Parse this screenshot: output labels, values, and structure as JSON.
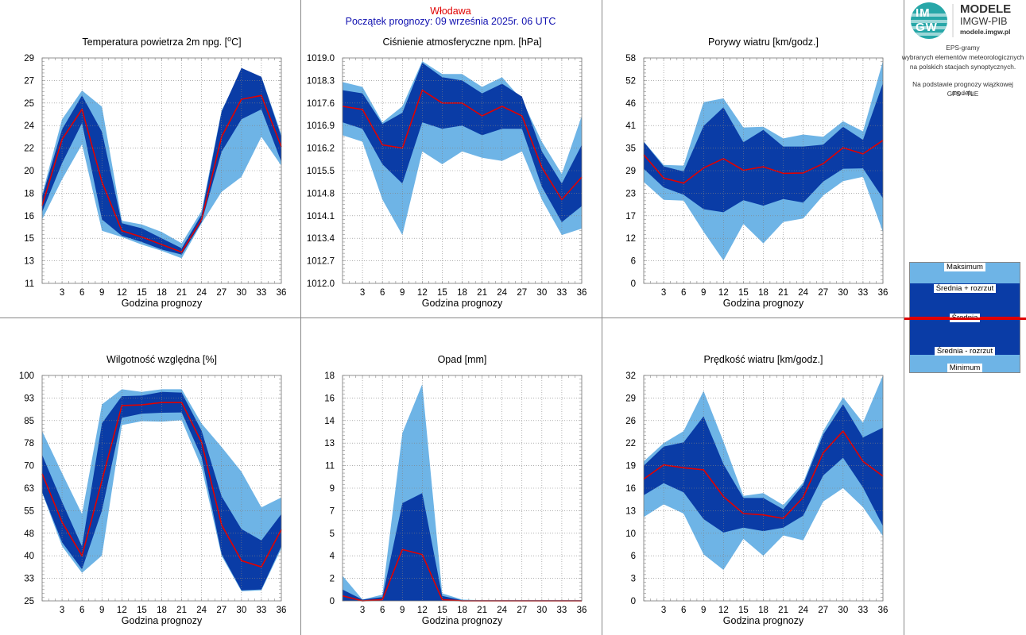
{
  "header": {
    "station": "Włodawa",
    "start": "Początek prognozy: 09 września 2025r. 06 UTC"
  },
  "logo": {
    "mark_top": "IM",
    "mark_bottom": "GW",
    "line1": "MODELE",
    "line2": "IMGW-PIB",
    "line3": "modele.imgw.pl"
  },
  "description": {
    "line1": "EPS-gramy",
    "line2": "wybranych elementów meteorologicznych",
    "line3": "na polskich stacjach  synoptycznych.",
    "line4": "Na podstawie prognozy wiązkowej modelu",
    "line5": "GFS - TLE"
  },
  "legend": {
    "max": "Maksimum",
    "mean_plus": "Średnia + rozrzut",
    "mean": "Średnia",
    "mean_minus": "Średnia - rozrzut",
    "min": "Minimum"
  },
  "colors": {
    "minmax_band": "#6eb4e6",
    "spread_band": "#0a3ca6",
    "mean_line": "#e00000",
    "grid": "#808080"
  },
  "chart_data": [
    {
      "type": "area",
      "title": "Temperatura powietrza 2m npg. [oC]",
      "xlabel": "Godzina prognozy",
      "x": [
        0,
        3,
        6,
        9,
        12,
        15,
        18,
        21,
        24,
        27,
        30,
        33,
        36
      ],
      "xticks": [
        "3",
        "6",
        "9",
        "12",
        "15",
        "18",
        "21",
        "24",
        "27",
        "30",
        "33",
        "36"
      ],
      "yticks": [
        "11",
        "13",
        "15",
        "16",
        "18",
        "20",
        "22",
        "24",
        "25",
        "27",
        "29"
      ],
      "ylim": [
        11,
        29
      ],
      "series": [
        {
          "name": "Maksimum",
          "values": [
            18.1,
            24.1,
            26.4,
            25.1,
            16.0,
            15.7,
            15.1,
            14.2,
            16.8,
            24.8,
            28.0,
            27.5,
            22.9
          ]
        },
        {
          "name": "Średnia + rozrzut",
          "values": [
            17.9,
            23.3,
            26.0,
            23.1,
            15.8,
            15.4,
            14.6,
            13.8,
            16.5,
            24.7,
            28.2,
            27.5,
            22.7
          ]
        },
        {
          "name": "Średnia",
          "values": [
            17.2,
            22.5,
            24.9,
            19.1,
            15.2,
            14.7,
            14.1,
            13.5,
            16.1,
            22.7,
            25.7,
            26.0,
            21.9
          ]
        },
        {
          "name": "Średnia - rozrzut",
          "values": [
            16.7,
            20.6,
            23.8,
            16.1,
            14.8,
            14.3,
            13.7,
            13.3,
            15.9,
            21.5,
            24.1,
            24.9,
            20.7
          ]
        },
        {
          "name": "Minimum",
          "values": [
            16.1,
            19.3,
            22.1,
            15.2,
            14.7,
            14.1,
            13.6,
            13.0,
            15.8,
            18.3,
            19.5,
            22.7,
            20.4
          ]
        }
      ]
    },
    {
      "type": "area",
      "title": "Ciśnienie atmosferyczne npm. [hPa]",
      "xlabel": "Godzina prognozy",
      "x": [
        0,
        3,
        6,
        9,
        12,
        15,
        18,
        21,
        24,
        27,
        30,
        33,
        36
      ],
      "xticks": [
        "3",
        "6",
        "9",
        "12",
        "15",
        "18",
        "21",
        "24",
        "27",
        "30",
        "33",
        "36"
      ],
      "yticks": [
        "1012.0",
        "1012.7",
        "1013.4",
        "1014.1",
        "1014.8",
        "1015.5",
        "1016.2",
        "1016.9",
        "1017.6",
        "1018.3",
        "1019.0"
      ],
      "ylim": [
        1012.0,
        1019.0
      ],
      "series": [
        {
          "name": "Maksimum",
          "values": [
            1018.25,
            1018.1,
            1017.0,
            1017.5,
            1018.9,
            1018.5,
            1018.5,
            1018.1,
            1018.4,
            1017.7,
            1016.4,
            1015.4,
            1017.2
          ]
        },
        {
          "name": "Średnia + rozrzut",
          "values": [
            1018.0,
            1017.9,
            1016.95,
            1017.3,
            1018.85,
            1018.4,
            1018.3,
            1017.9,
            1018.2,
            1017.8,
            1016.1,
            1015.1,
            1016.3
          ]
        },
        {
          "name": "Średnia",
          "values": [
            1017.5,
            1017.4,
            1016.3,
            1016.2,
            1018.0,
            1017.6,
            1017.6,
            1017.2,
            1017.5,
            1017.2,
            1015.6,
            1014.6,
            1015.3
          ]
        },
        {
          "name": "Średnia - rozrzut",
          "values": [
            1017.0,
            1016.8,
            1015.7,
            1015.1,
            1017.0,
            1016.8,
            1016.9,
            1016.6,
            1016.8,
            1016.8,
            1015.0,
            1013.9,
            1014.4
          ]
        },
        {
          "name": "Minimum",
          "values": [
            1016.6,
            1016.4,
            1014.6,
            1013.5,
            1016.1,
            1015.7,
            1016.1,
            1015.9,
            1015.8,
            1016.1,
            1014.6,
            1013.5,
            1013.7
          ]
        }
      ]
    },
    {
      "type": "area",
      "title": "Porywy wiatru [km/godz.]",
      "xlabel": "Godzina prognozy",
      "x": [
        0,
        3,
        6,
        9,
        12,
        15,
        18,
        21,
        24,
        27,
        30,
        33,
        36
      ],
      "xticks": [
        "3",
        "6",
        "9",
        "12",
        "15",
        "18",
        "21",
        "24",
        "27",
        "30",
        "33",
        "36"
      ],
      "yticks": [
        "0",
        "6",
        "12",
        "17",
        "23",
        "29",
        "35",
        "41",
        "46",
        "52",
        "58"
      ],
      "ylim": [
        0,
        58
      ],
      "series": [
        {
          "name": "Maksimum",
          "values": [
            36.5,
            30.5,
            30.3,
            46.6,
            47.6,
            40.1,
            40.3,
            37.3,
            38.3,
            37.7,
            41.7,
            39.1,
            57.2
          ]
        },
        {
          "name": "Średnia + rozrzut",
          "values": [
            36.4,
            30.1,
            28.8,
            40.5,
            45.3,
            36.3,
            39.5,
            35.2,
            35.2,
            35.7,
            40.3,
            36.9,
            51.5
          ]
        },
        {
          "name": "Średnia",
          "values": [
            33.1,
            27.1,
            25.8,
            29.7,
            32.1,
            29.1,
            30.0,
            28.3,
            28.4,
            30.8,
            34.9,
            33.3,
            36.8
          ]
        },
        {
          "name": "Średnia - rozrzut",
          "values": [
            29.5,
            24.7,
            22.8,
            19.1,
            18.3,
            21.4,
            20.0,
            21.7,
            20.8,
            26.2,
            29.5,
            29.6,
            21.9
          ]
        },
        {
          "name": "Minimum",
          "values": [
            26.1,
            21.5,
            21.3,
            13.3,
            5.9,
            15.3,
            10.3,
            15.8,
            16.7,
            22.6,
            26.3,
            27.4,
            13.2
          ]
        }
      ]
    },
    {
      "type": "area",
      "title": "Wilgotność względna [%]",
      "xlabel": "Godzina prognozy",
      "x": [
        0,
        3,
        6,
        9,
        12,
        15,
        18,
        21,
        24,
        27,
        30,
        33,
        36
      ],
      "xticks": [
        "3",
        "6",
        "9",
        "12",
        "15",
        "18",
        "21",
        "24",
        "27",
        "30",
        "33",
        "36"
      ],
      "yticks": [
        "25",
        "33",
        "40",
        "48",
        "55",
        "63",
        "70",
        "78",
        "85",
        "93",
        "100"
      ],
      "ylim": [
        25,
        100
      ],
      "series": [
        {
          "name": "Maksimum",
          "values": [
            81.5,
            67.5,
            53.9,
            90.4,
            95.4,
            94.5,
            95.4,
            95.4,
            84.0,
            76.2,
            68.0,
            56.1,
            59.4
          ]
        },
        {
          "name": "Średnia + rozrzut",
          "values": [
            73.6,
            57.9,
            43.1,
            84.1,
            93.1,
            93.3,
            94.5,
            94.3,
            81.6,
            59.8,
            48.9,
            45.1,
            53.9
          ]
        },
        {
          "name": "Średnia",
          "values": [
            67.3,
            51.2,
            40.0,
            65.1,
            90.0,
            90.2,
            91.0,
            91.0,
            77.7,
            50.3,
            38.4,
            36.3,
            48.7
          ]
        },
        {
          "name": "Średnia - rozrzut",
          "values": [
            61.2,
            44.5,
            35.5,
            55.1,
            85.9,
            87.3,
            87.6,
            87.7,
            72.8,
            40.6,
            28.5,
            28.8,
            43.2
          ]
        },
        {
          "name": "Minimum",
          "values": [
            61.0,
            43.2,
            34.3,
            40.1,
            83.5,
            84.8,
            84.6,
            85.1,
            69.4,
            40.0,
            28.2,
            28.5,
            42.4
          ]
        }
      ]
    },
    {
      "type": "area",
      "title": "Opad [mm]",
      "xlabel": "Godzina prognozy",
      "x": [
        0,
        3,
        6,
        9,
        12,
        15,
        18,
        21,
        24,
        27,
        30,
        33,
        36
      ],
      "xticks": [
        "3",
        "6",
        "9",
        "12",
        "15",
        "18",
        "21",
        "24",
        "27",
        "30",
        "33",
        "36"
      ],
      "yticks": [
        "0",
        "2",
        "4",
        "5",
        "7",
        "9",
        "11",
        "13",
        "14",
        "16",
        "18"
      ],
      "ylim": [
        0,
        18
      ],
      "series": [
        {
          "name": "Maksimum",
          "values": [
            2.0,
            0.1,
            0.5,
            13.4,
            17.3,
            0.6,
            0.1,
            0.05,
            0.05,
            0.05,
            0.05,
            0.05,
            0.05
          ]
        },
        {
          "name": "Średnia + rozrzut",
          "values": [
            0.9,
            0.1,
            0.3,
            7.8,
            8.6,
            0.4,
            0.05,
            0.05,
            0.05,
            0.05,
            0.05,
            0.05,
            0.05
          ]
        },
        {
          "name": "Średnia",
          "values": [
            0.4,
            0.0,
            0.1,
            4.1,
            3.7,
            0.1,
            0.0,
            0.0,
            0.0,
            0.0,
            0.0,
            0.0,
            0.0
          ]
        },
        {
          "name": "Średnia - rozrzut",
          "values": [
            0.0,
            0.0,
            0.0,
            0.0,
            0.0,
            0.0,
            0.0,
            0.0,
            0.0,
            0.0,
            0.0,
            0.0,
            0.0
          ]
        },
        {
          "name": "Minimum",
          "values": [
            0.0,
            0.0,
            0.0,
            0.0,
            0.0,
            0.0,
            0.0,
            0.0,
            0.0,
            0.0,
            0.0,
            0.0,
            0.0
          ]
        }
      ]
    },
    {
      "type": "area",
      "title": "Prędkość wiatru [km/godz.]",
      "xlabel": "Godzina prognozy",
      "x": [
        0,
        3,
        6,
        9,
        12,
        15,
        18,
        21,
        24,
        27,
        30,
        33,
        36
      ],
      "xticks": [
        "3",
        "6",
        "9",
        "12",
        "15",
        "18",
        "21",
        "24",
        "27",
        "30",
        "33",
        "36"
      ],
      "yticks": [
        "0",
        "3",
        "6",
        "10",
        "13",
        "16",
        "19",
        "22",
        "26",
        "29",
        "32"
      ],
      "ylim": [
        0,
        32
      ],
      "series": [
        {
          "name": "Maksimum",
          "values": [
            19.8,
            22.4,
            24.1,
            29.8,
            22.6,
            14.9,
            15.3,
            13.6,
            16.8,
            24.1,
            28.9,
            25.3,
            32.0
          ]
        },
        {
          "name": "Średnia + rozrzut",
          "values": [
            19.2,
            21.9,
            22.5,
            26.2,
            19.4,
            14.6,
            14.6,
            13.0,
            16.5,
            23.6,
            27.9,
            23.2,
            24.6
          ]
        },
        {
          "name": "Średnia",
          "values": [
            17.3,
            19.3,
            18.9,
            18.6,
            14.8,
            12.4,
            12.2,
            11.7,
            14.7,
            21.0,
            24.1,
            19.8,
            17.7
          ]
        },
        {
          "name": "Średnia - rozrzut",
          "values": [
            15.0,
            16.7,
            15.4,
            11.6,
            9.7,
            10.4,
            9.9,
            10.4,
            12.1,
            17.8,
            20.3,
            16.1,
            10.6
          ]
        },
        {
          "name": "Minimum",
          "values": [
            11.9,
            13.7,
            12.4,
            6.6,
            4.4,
            8.8,
            6.4,
            9.3,
            8.6,
            14.1,
            16.0,
            13.3,
            9.2
          ]
        }
      ]
    }
  ]
}
